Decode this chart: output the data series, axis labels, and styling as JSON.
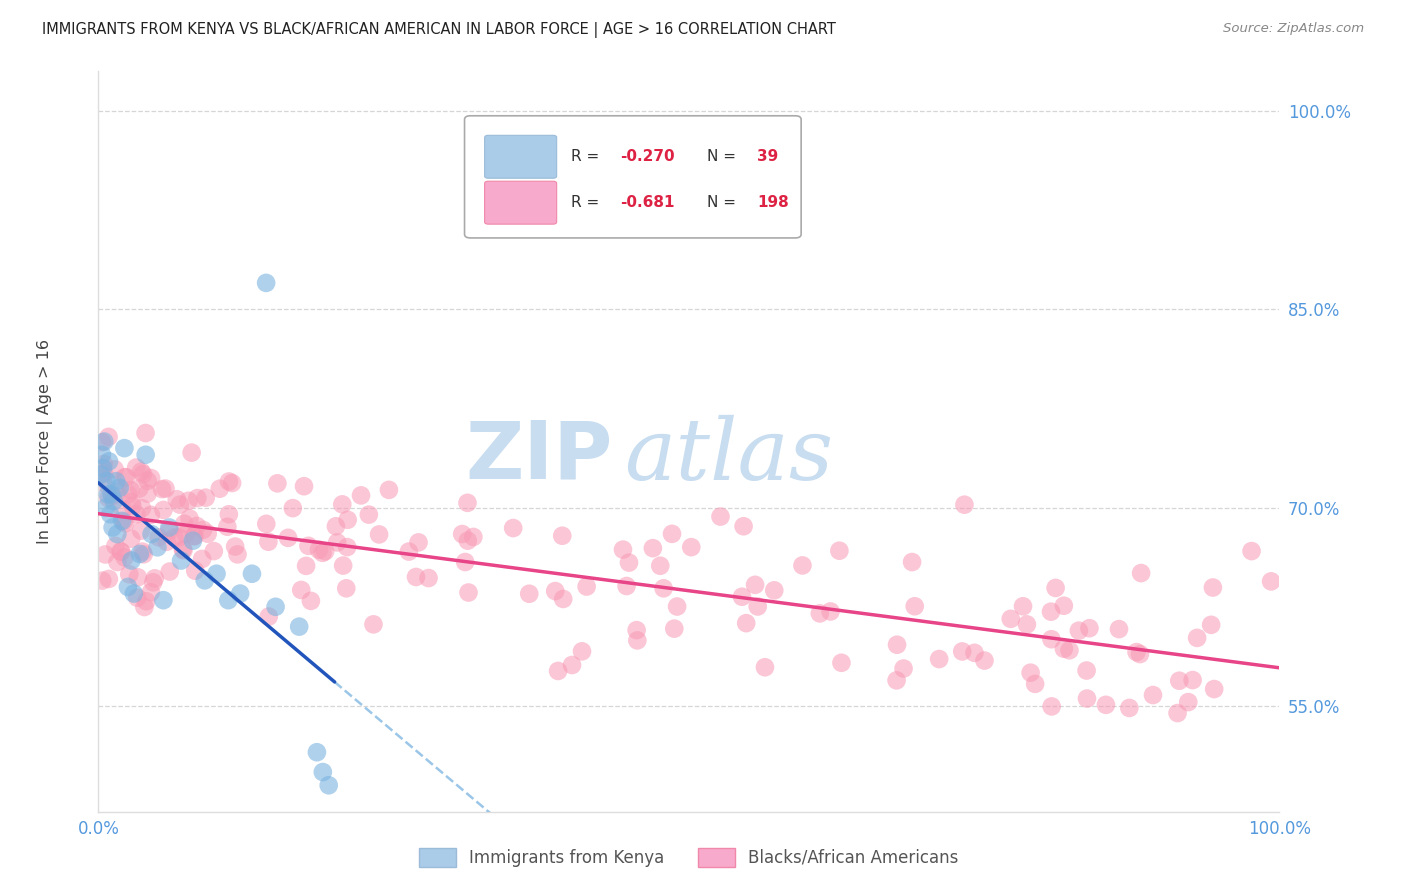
{
  "title": "IMMIGRANTS FROM KENYA VS BLACK/AFRICAN AMERICAN IN LABOR FORCE | AGE > 16 CORRELATION CHART",
  "source": "Source: ZipAtlas.com",
  "ylabel": "In Labor Force | Age > 16",
  "xlim": [
    0.0,
    100.0
  ],
  "ylim": [
    47.0,
    103.0
  ],
  "yticks": [
    55.0,
    70.0,
    85.0,
    100.0
  ],
  "r_kenya": -0.27,
  "n_kenya": 39,
  "r_black": -0.681,
  "n_black": 198,
  "color_kenya": "#7ab3e0",
  "color_black": "#f899b5",
  "background_color": "#ffffff",
  "grid_color": "#cccccc",
  "title_color": "#222222",
  "tick_color": "#5599dd",
  "legend_label_kenya": "Immigrants from Kenya",
  "legend_label_black": "Blacks/African Americans",
  "watermark_zip": "ZIP",
  "watermark_atlas": "atlas"
}
